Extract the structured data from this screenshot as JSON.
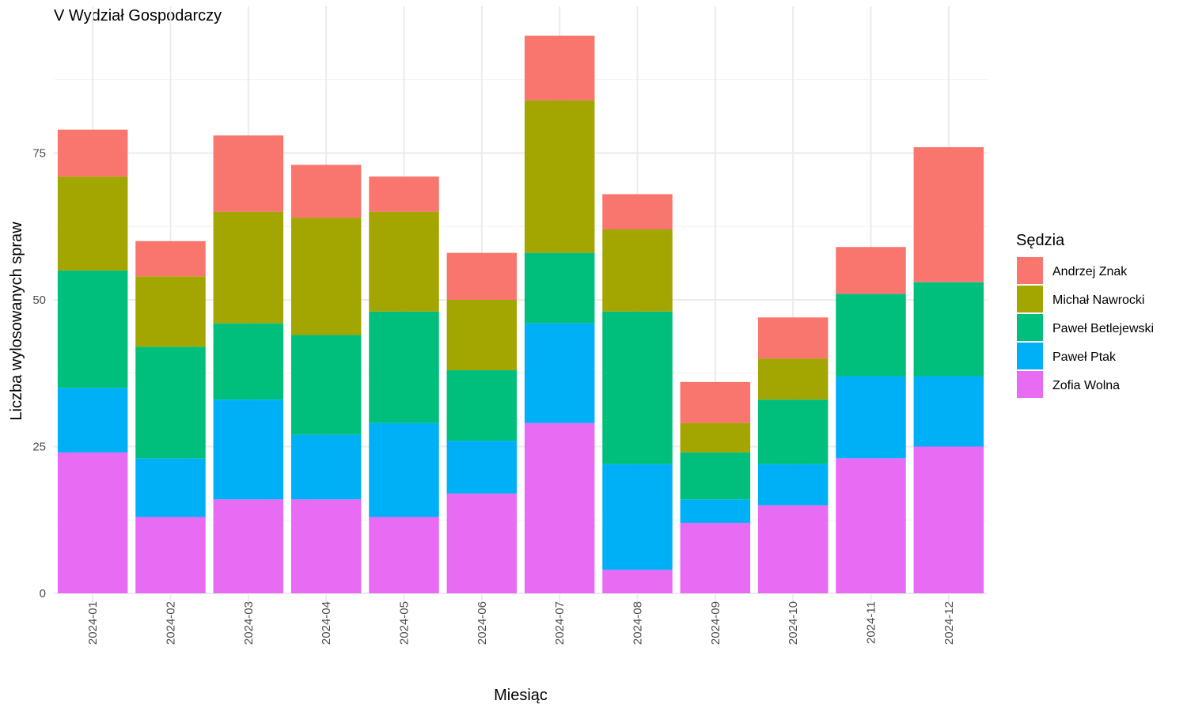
{
  "chart_data": {
    "type": "bar",
    "stacked": true,
    "title": "V Wydział Gospodarczy",
    "xlabel": "Miesiąc",
    "ylabel": "Liczba wylosowanych spraw",
    "ylim": [
      0,
      100
    ],
    "yticks": [
      0,
      25,
      50,
      75
    ],
    "grid": true,
    "legend_position": "right",
    "legend_title": "Sędzia",
    "categories": [
      "2024-01",
      "2024-02",
      "2024-03",
      "2024-04",
      "2024-05",
      "2024-06",
      "2024-07",
      "2024-08",
      "2024-09",
      "2024-10",
      "2024-11",
      "2024-12"
    ],
    "series": [
      {
        "name": "Zofia Wolna",
        "color": "#E76BF3",
        "values": [
          24,
          13,
          16,
          16,
          13,
          17,
          29,
          4,
          12,
          15,
          23,
          25
        ]
      },
      {
        "name": "Paweł Ptak",
        "color": "#00B0F6",
        "values": [
          11,
          10,
          17,
          11,
          16,
          9,
          17,
          18,
          4,
          7,
          14,
          12
        ]
      },
      {
        "name": "Paweł Betlejewski",
        "color": "#00BF7D",
        "values": [
          20,
          19,
          13,
          17,
          19,
          12,
          12,
          26,
          8,
          11,
          14,
          16
        ]
      },
      {
        "name": "Michał Nawrocki",
        "color": "#A3A500",
        "values": [
          16,
          12,
          19,
          20,
          17,
          12,
          26,
          14,
          5,
          7,
          0,
          0
        ]
      },
      {
        "name": "Andrzej Znak",
        "color": "#F8766D",
        "values": [
          8,
          6,
          13,
          9,
          6,
          8,
          11,
          6,
          7,
          7,
          8,
          23
        ]
      }
    ],
    "legend_order": [
      "Andrzej Znak",
      "Michał Nawrocki",
      "Paweł Betlejewski",
      "Paweł Ptak",
      "Zofia Wolna"
    ]
  }
}
